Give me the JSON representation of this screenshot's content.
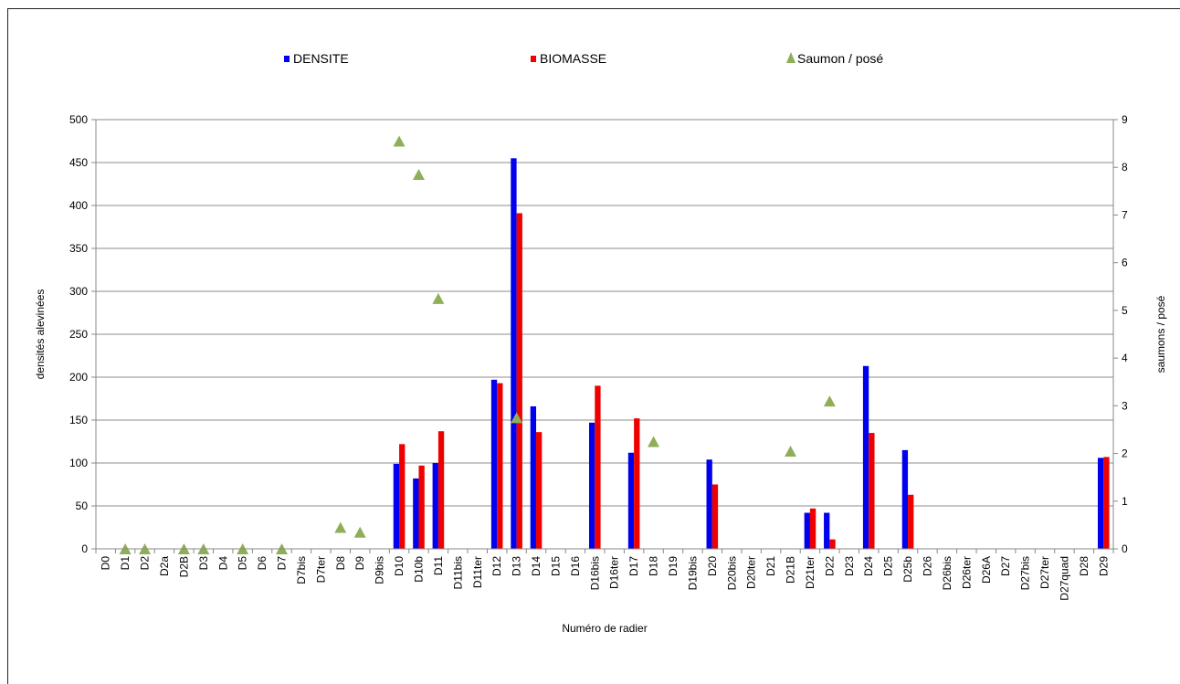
{
  "chart_data": {
    "type": "bar",
    "xlabel": "Numéro de radier",
    "ylabel": "densités alevinées",
    "y2label": "saumons / posé",
    "ylim": [
      0,
      500
    ],
    "y2lim": [
      0,
      9
    ],
    "yticks": [
      0,
      50,
      100,
      150,
      200,
      250,
      300,
      350,
      400,
      450,
      500
    ],
    "y2ticks": [
      0,
      1,
      2,
      3,
      4,
      5,
      6,
      7,
      8,
      9
    ],
    "grid": true,
    "legend_position": "top",
    "categories": [
      "D0",
      "D1",
      "D2",
      "D2a",
      "D2B",
      "D3",
      "D4",
      "D5",
      "D6",
      "D7",
      "D7bis",
      "D7ter",
      "D8",
      "D9",
      "D9bis",
      "D10",
      "D10b",
      "D11",
      "D11bis",
      "D11ter",
      "D12",
      "D13",
      "D14",
      "D15",
      "D16",
      "D16bis",
      "D16ter",
      "D17",
      "D18",
      "D19",
      "D19bis",
      "D20",
      "D20bis",
      "D20ter",
      "D21",
      "D21B",
      "D21ter",
      "D22",
      "D23",
      "D24",
      "D25",
      "D25b",
      "D26",
      "D26bis",
      "D26ter",
      "D26A",
      "D27",
      "D27bis",
      "D27ter",
      "D27quad",
      "D28",
      "D29"
    ],
    "series": [
      {
        "name": "DENSITE",
        "kind": "bar",
        "axis": "left",
        "color": "#0000ee",
        "values": [
          0,
          0,
          0,
          0,
          0,
          0,
          0,
          0,
          0,
          0,
          0,
          0,
          0,
          0,
          0,
          99,
          82,
          100,
          0,
          0,
          197,
          455,
          166,
          0,
          0,
          147,
          0,
          112,
          0,
          0,
          0,
          104,
          0,
          0,
          0,
          0,
          42,
          42,
          0,
          213,
          0,
          115,
          0,
          0,
          0,
          0,
          0,
          0,
          0,
          0,
          0,
          106
        ]
      },
      {
        "name": "BIOMASSE",
        "kind": "bar",
        "axis": "left",
        "color": "#ee0000",
        "values": [
          0,
          0,
          0,
          0,
          0,
          0,
          0,
          0,
          0,
          0,
          0,
          0,
          0,
          0,
          0,
          122,
          97,
          137,
          0,
          0,
          193,
          391,
          136,
          0,
          0,
          190,
          0,
          152,
          0,
          0,
          0,
          75,
          0,
          0,
          0,
          0,
          47,
          11,
          0,
          135,
          0,
          63,
          0,
          0,
          0,
          0,
          0,
          0,
          0,
          0,
          0,
          107
        ]
      },
      {
        "name": "Saumon / posé",
        "kind": "scatter",
        "marker": "triangle",
        "axis": "right",
        "color": "#8fae58",
        "values": [
          null,
          0,
          0,
          null,
          0,
          0,
          null,
          0,
          null,
          0,
          null,
          null,
          0.45,
          0.35,
          null,
          8.55,
          7.85,
          5.25,
          null,
          null,
          null,
          2.75,
          null,
          null,
          null,
          null,
          null,
          null,
          2.25,
          null,
          null,
          null,
          null,
          null,
          null,
          2.05,
          null,
          3.1,
          null,
          null,
          null,
          null,
          null,
          null,
          null,
          null,
          null,
          null,
          null,
          null,
          null,
          null
        ]
      }
    ]
  }
}
